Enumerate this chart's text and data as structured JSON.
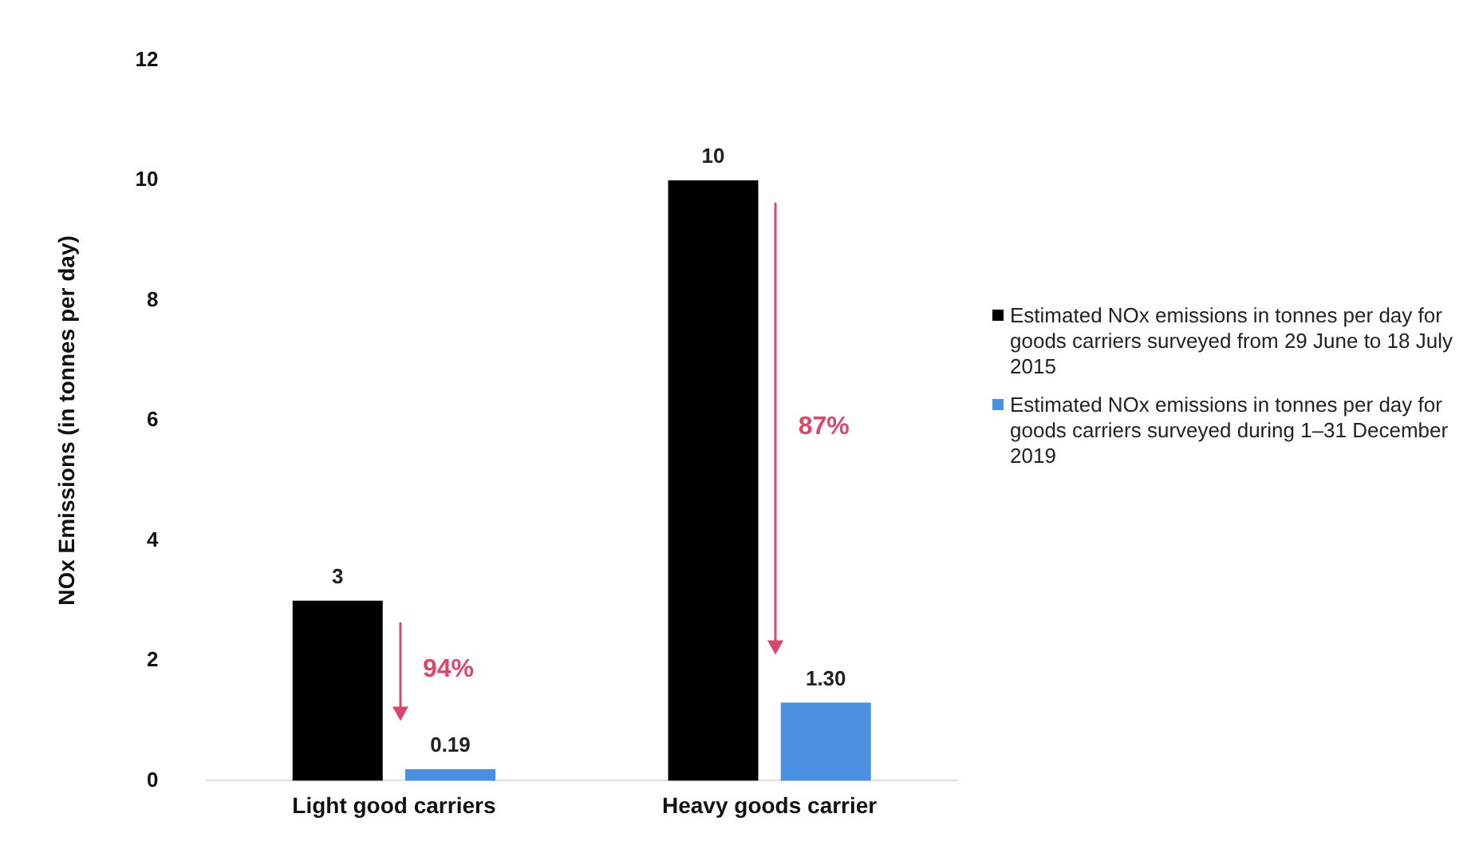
{
  "chart_data": {
    "type": "bar",
    "ylabel": "NOx Emissions (in tonnes per day)",
    "categories": [
      "Light good carriers",
      "Heavy goods carrier"
    ],
    "series": [
      {
        "name": "Estimated NOx emissions in tonnes per day for goods carriers surveyed from 29 June to 18 July 2015",
        "color": "#000000",
        "values": [
          3,
          10
        ],
        "value_labels": [
          "3",
          "10"
        ]
      },
      {
        "name": "Estimated NOx emissions in tonnes per day for goods carriers surveyed during 1–31 December 2019",
        "color": "#4a8fe0",
        "values": [
          0.19,
          1.3
        ],
        "value_labels": [
          "0.19",
          "1.30"
        ]
      }
    ],
    "ylim": [
      0,
      12
    ],
    "yticks": [
      0,
      2,
      4,
      6,
      8,
      10,
      12
    ],
    "grid": false,
    "legend": "right",
    "annotations": [
      "94%",
      "87%"
    ]
  }
}
